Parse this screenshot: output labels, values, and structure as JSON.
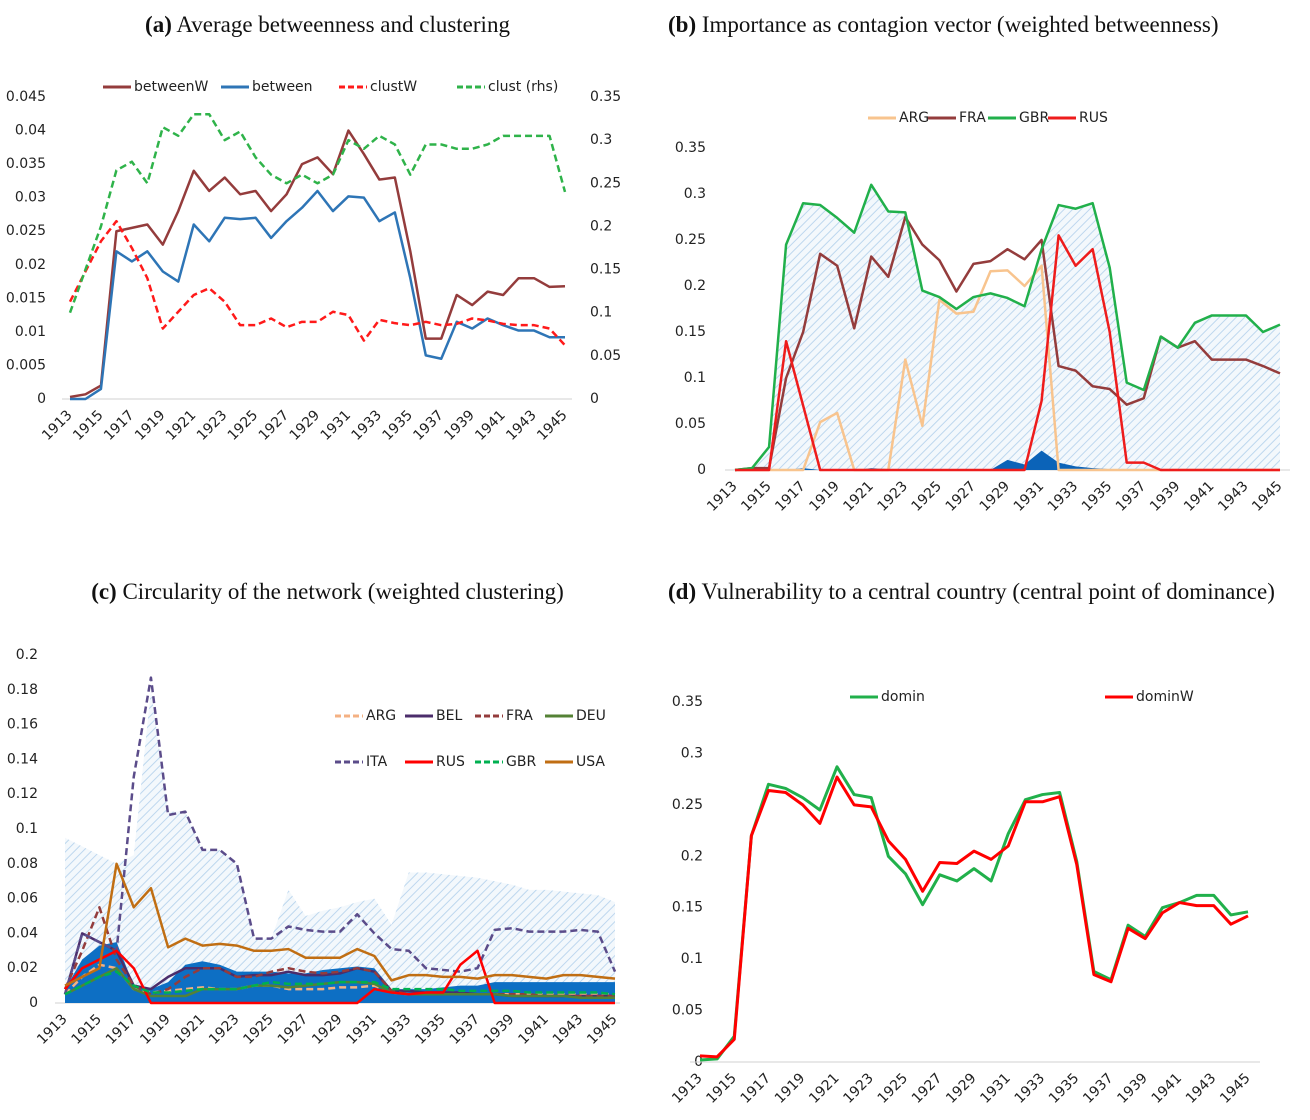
{
  "chart_data": [
    {
      "type": "line",
      "label": "(a)",
      "title": "Average betweenness and clustering",
      "categories": [
        "1913",
        null,
        "1915",
        null,
        "1917",
        null,
        "1919",
        null,
        "1921",
        null,
        "1923",
        null,
        "1925",
        null,
        "1927",
        null,
        "1929",
        null,
        "1931",
        null,
        "1933",
        null,
        "1935",
        null,
        "1937",
        null,
        "1939",
        null,
        "1941",
        null,
        "1943",
        null,
        "1945"
      ],
      "ylim": [
        0,
        0.045
      ],
      "yticks": [
        0,
        0.005,
        0.01,
        0.015,
        0.02,
        0.025,
        0.03,
        0.035,
        0.04,
        0.045
      ],
      "y2lim": [
        0,
        0.35
      ],
      "y2ticks": [
        0,
        0.05,
        0.1,
        0.15,
        0.2,
        0.25,
        0.3,
        0.35
      ],
      "legend": "top",
      "series": [
        {
          "name": "betweenW",
          "color": "#943c3c",
          "values": [
            0.0003,
            0.0007,
            0.002,
            0.025,
            0.0255,
            0.026,
            0.023,
            0.028,
            0.034,
            0.031,
            0.033,
            0.0305,
            0.031,
            0.028,
            0.0305,
            0.035,
            0.036,
            0.0335,
            0.04,
            0.0365,
            0.0327,
            0.033,
            0.022,
            0.009,
            0.009,
            0.0155,
            0.014,
            0.016,
            0.0155,
            0.018,
            0.018,
            0.0167,
            0.0168
          ]
        },
        {
          "name": "between",
          "color": "#2e75b6",
          "values": [
            0,
            0,
            0.0015,
            0.022,
            0.0205,
            0.022,
            0.019,
            0.0175,
            0.026,
            0.0235,
            0.027,
            0.0268,
            0.027,
            0.024,
            0.0265,
            0.0285,
            0.031,
            0.028,
            0.0302,
            0.03,
            0.0265,
            0.0278,
            0.018,
            0.0065,
            0.006,
            0.0115,
            0.0105,
            0.012,
            0.011,
            0.0102,
            0.0102,
            0.0092,
            0.0092
          ]
        },
        {
          "name": "clustW",
          "color": "#ff1a1a",
          "dash": true,
          "values": [
            0.0145,
            0.019,
            0.0235,
            0.0265,
            0.0225,
            0.018,
            0.0105,
            0.013,
            0.0155,
            0.0165,
            0.0145,
            0.011,
            0.011,
            0.012,
            0.0107,
            0.0115,
            0.0115,
            0.013,
            0.0125,
            0.0087,
            0.0118,
            0.0113,
            0.011,
            0.0115,
            0.011,
            0.0112,
            0.012,
            0.0117,
            0.0112,
            0.011,
            0.011,
            0.0105,
            0.008
          ]
        },
        {
          "name": "clust (rhs)",
          "color": "#2fb34a",
          "dash": true,
          "axis": "y2",
          "values": [
            0.1,
            0.15,
            0.2,
            0.265,
            0.275,
            0.25,
            0.315,
            0.305,
            0.33,
            0.33,
            0.3,
            0.31,
            0.28,
            0.26,
            0.25,
            0.26,
            0.25,
            0.26,
            0.3,
            0.29,
            0.305,
            0.295,
            0.26,
            0.295,
            0.295,
            0.29,
            0.29,
            0.295,
            0.305,
            0.305,
            0.305,
            0.305,
            0.24
          ]
        }
      ]
    },
    {
      "type": "line",
      "label": "(b)",
      "title": "Importance as contagion vector (weighted betweenness)",
      "categories": [
        "1913",
        null,
        "1915",
        null,
        "1917",
        null,
        "1919",
        null,
        "1921",
        null,
        "1923",
        null,
        "1925",
        null,
        "1927",
        null,
        "1929",
        null,
        "1931",
        null,
        "1933",
        null,
        "1935",
        null,
        "1937",
        null,
        "1939",
        null,
        "1941",
        null,
        "1943",
        null,
        "1945"
      ],
      "ylim": [
        0,
        0.35
      ],
      "yticks": [
        0,
        0.05,
        0.1,
        0.15,
        0.2,
        0.25,
        0.3,
        0.35
      ],
      "legend": "top",
      "series": [
        {
          "kind": "area",
          "pattern": "hatch",
          "color": "#bdd7ee",
          "values": [
            0,
            0.002,
            0.025,
            0.245,
            0.29,
            0.288,
            0.274,
            0.258,
            0.31,
            0.281,
            0.28,
            0.195,
            0.188,
            0.175,
            0.188,
            0.192,
            0.187,
            0.178,
            0.24,
            0.288,
            0.284,
            0.29,
            0.22,
            0.095,
            0.087,
            0.145,
            0.133,
            0.16,
            0.168,
            0.168,
            0.168,
            0.15,
            0.158
          ]
        },
        {
          "kind": "area",
          "color": "#0b63b8",
          "values": [
            0,
            0,
            0,
            0,
            0.002,
            0,
            0,
            0,
            0.002,
            0.001,
            0,
            0,
            0,
            0,
            0,
            0,
            0.011,
            0.006,
            0.021,
            0.008,
            0.004,
            0.002,
            0.001,
            0,
            0,
            0,
            0,
            0,
            0,
            0,
            0.001,
            0.001,
            0
          ]
        },
        {
          "name": "ARG",
          "color": "#f8c48e",
          "values": [
            0,
            0,
            0,
            0,
            0,
            0.052,
            0.062,
            0,
            0,
            0,
            0.12,
            0.048,
            0.185,
            0.17,
            0.172,
            0.216,
            0.217,
            0.2,
            0.222,
            0,
            0,
            0,
            0,
            0,
            0,
            0,
            0,
            0,
            0,
            0,
            0,
            0,
            0
          ]
        },
        {
          "name": "FRA",
          "color": "#943c3c",
          "values": [
            0,
            0.002,
            0.002,
            0.1,
            0.15,
            0.235,
            0.222,
            0.154,
            0.232,
            0.21,
            0.275,
            0.245,
            0.228,
            0.194,
            0.224,
            0.227,
            0.24,
            0.229,
            0.25,
            0.113,
            0.108,
            0.091,
            0.088,
            0.071,
            0.078,
            0.145,
            0.133,
            0.14,
            0.12,
            0.12,
            0.12,
            0.113,
            0.105
          ]
        },
        {
          "name": "GBR",
          "color": "#21b04b",
          "values": [
            0,
            0.002,
            0.025,
            0.245,
            0.29,
            0.288,
            0.274,
            0.258,
            0.31,
            0.281,
            0.28,
            0.195,
            0.188,
            0.175,
            0.188,
            0.192,
            0.187,
            0.178,
            0.24,
            0.288,
            0.284,
            0.29,
            0.22,
            0.095,
            0.087,
            0.145,
            0.133,
            0.16,
            0.168,
            0.168,
            0.168,
            0.15,
            0.158
          ]
        },
        {
          "name": "RUS",
          "color": "#ee1c1c",
          "values": [
            0,
            0,
            0,
            0.14,
            0.07,
            0,
            0,
            0,
            0,
            0,
            0,
            0,
            0,
            0,
            0,
            0,
            0,
            0,
            0.075,
            0.255,
            0.222,
            0.24,
            0.15,
            0.008,
            0.008,
            0,
            0,
            0,
            0,
            0,
            0,
            0,
            0
          ]
        }
      ]
    },
    {
      "type": "line",
      "label": "(c)",
      "title": "Circularity of the network (weighted clustering)",
      "categories": [
        "1913",
        null,
        "1915",
        null,
        "1917",
        null,
        "1919",
        null,
        "1921",
        null,
        "1923",
        null,
        "1925",
        null,
        "1927",
        null,
        "1929",
        null,
        "1931",
        null,
        "1933",
        null,
        "1935",
        null,
        "1937",
        null,
        "1939",
        null,
        "1941",
        null,
        "1943",
        null,
        "1945"
      ],
      "ylim": [
        0,
        0.2
      ],
      "yticks": [
        0,
        0.02,
        0.04,
        0.06,
        0.08,
        0.1,
        0.12,
        0.14,
        0.16,
        0.18,
        0.2
      ],
      "legend": "upper right",
      "series": [
        {
          "kind": "area",
          "pattern": "hatch",
          "color": "#bdd7ee",
          "values": [
            0.095,
            0.09,
            0.085,
            0.08,
            0.085,
            0.18,
            0.11,
            0.11,
            0.088,
            0.088,
            0.08,
            0.037,
            0.037,
            0.065,
            0.05,
            0.053,
            0.055,
            0.058,
            0.06,
            0.045,
            0.075,
            0.075,
            0.074,
            0.073,
            0.072,
            0.07,
            0.068,
            0.065,
            0.065,
            0.064,
            0.063,
            0.062,
            0.058
          ]
        },
        {
          "kind": "area",
          "color": "#0d6fc4",
          "values": [
            0.008,
            0.025,
            0.033,
            0.035,
            0.01,
            0.008,
            0.012,
            0.022,
            0.024,
            0.022,
            0.018,
            0.018,
            0.018,
            0.017,
            0.017,
            0.019,
            0.02,
            0.021,
            0.02,
            0.008,
            0.008,
            0.008,
            0.009,
            0.01,
            0.01,
            0.012,
            0.012,
            0.012,
            0.012,
            0.012,
            0.012,
            0.012,
            0.012
          ]
        },
        {
          "name": "ARG",
          "color": "#f4b183",
          "dash": true,
          "values": [
            0.005,
            0.015,
            0.022,
            0.02,
            0.008,
            0.006,
            0.007,
            0.008,
            0.009,
            0.008,
            0.008,
            0.01,
            0.01,
            0.008,
            0.008,
            0.008,
            0.009,
            0.009,
            0.01,
            0.006,
            0.005,
            0.005,
            0.005,
            0.005,
            0.005,
            0.005,
            0.005,
            0.005,
            0.005,
            0.005,
            0.005,
            0.005,
            0.005
          ]
        },
        {
          "name": "BEL",
          "color": "#4b2d6b",
          "values": [
            0.005,
            0.04,
            0.035,
            0.03,
            0.01,
            0.008,
            0.015,
            0.02,
            0.02,
            0.02,
            0.015,
            0.016,
            0.016,
            0.018,
            0.016,
            0.016,
            0.017,
            0.02,
            0.018,
            0.007,
            0.007,
            0.006,
            0.006,
            0.006,
            0.005,
            0.005,
            0.004,
            0.004,
            0.004,
            0.004,
            0.004,
            0.004,
            0.004
          ]
        },
        {
          "name": "FRA",
          "color": "#943c3c",
          "dash": true,
          "values": [
            0.008,
            0.03,
            0.055,
            0.025,
            0.01,
            0.005,
            0.008,
            0.015,
            0.02,
            0.02,
            0.015,
            0.015,
            0.018,
            0.02,
            0.018,
            0.017,
            0.018,
            0.02,
            0.018,
            0.007,
            0.005,
            0.005,
            0.005,
            0.005,
            0.005,
            0.005,
            0.005,
            0.005,
            0.004,
            0.004,
            0.004,
            0.004,
            0.004
          ]
        },
        {
          "name": "DEU",
          "color": "#548235",
          "values": [
            0.005,
            0.01,
            0.015,
            0.02,
            0.008,
            0.004,
            0.004,
            0.004,
            0.008,
            0.008,
            0.008,
            0.01,
            0.01,
            0.009,
            0.01,
            0.011,
            0.012,
            0.012,
            0.011,
            0.006,
            0.005,
            0.005,
            0.005,
            0.005,
            0.005,
            0.005,
            0.004,
            0.004,
            0.004,
            0.004,
            0.003,
            0.003,
            0.003
          ]
        },
        {
          "name": "ITA",
          "color": "#5b4c8a",
          "dash": true,
          "values": [
            0.005,
            0.04,
            0.035,
            0.03,
            0.13,
            0.187,
            0.108,
            0.11,
            0.088,
            0.088,
            0.08,
            0.037,
            0.037,
            0.044,
            0.042,
            0.041,
            0.041,
            0.051,
            0.04,
            0.031,
            0.03,
            0.02,
            0.019,
            0.018,
            0.02,
            0.042,
            0.043,
            0.041,
            0.041,
            0.041,
            0.042,
            0.041,
            0.018
          ]
        },
        {
          "name": "RUS",
          "color": "#ff0000",
          "values": [
            0.008,
            0.02,
            0.025,
            0.03,
            0.02,
            0,
            0,
            0,
            0,
            0,
            0,
            0,
            0,
            0,
            0,
            0,
            0,
            0,
            0.008,
            0.006,
            0.005,
            0.006,
            0.006,
            0.022,
            0.03,
            0,
            0,
            0,
            0,
            0,
            0,
            0,
            0
          ]
        },
        {
          "name": "GBR",
          "color": "#00b050",
          "dash": true,
          "values": [
            0.005,
            0.01,
            0.015,
            0.018,
            0.01,
            0.006,
            0.006,
            0.007,
            0.008,
            0.008,
            0.008,
            0.01,
            0.012,
            0.011,
            0.011,
            0.011,
            0.012,
            0.012,
            0.012,
            0.008,
            0.008,
            0.008,
            0.008,
            0.007,
            0.007,
            0.007,
            0.007,
            0.006,
            0.006,
            0.006,
            0.006,
            0.006,
            0.005
          ]
        },
        {
          "name": "USA",
          "color": "#c06e13",
          "values": [
            0.01,
            0.015,
            0.02,
            0.08,
            0.055,
            0.066,
            0.032,
            0.037,
            0.033,
            0.034,
            0.033,
            0.03,
            0.03,
            0.031,
            0.026,
            0.026,
            0.026,
            0.031,
            0.027,
            0.013,
            0.016,
            0.016,
            0.015,
            0.015,
            0.014,
            0.016,
            0.016,
            0.015,
            0.014,
            0.016,
            0.016,
            0.015,
            0.014
          ]
        }
      ]
    },
    {
      "type": "line",
      "label": "(d)",
      "title": "Vulnerability to a central country (central point of dominance)",
      "categories": [
        "1913",
        null,
        "1915",
        null,
        "1917",
        null,
        "1919",
        null,
        "1921",
        null,
        "1923",
        null,
        "1925",
        null,
        "1927",
        null,
        "1929",
        null,
        "1931",
        null,
        "1933",
        null,
        "1935",
        null,
        "1937",
        null,
        "1939",
        null,
        "1941",
        null,
        "1943",
        null,
        "1945"
      ],
      "ylim": [
        0,
        0.35
      ],
      "yticks": [
        0,
        0.05,
        0.1,
        0.15,
        0.2,
        0.25,
        0.3,
        0.35
      ],
      "legend": "top",
      "series": [
        {
          "name": "domin",
          "color": "#21b04b",
          "values": [
            0.002,
            0.003,
            0.025,
            0.22,
            0.27,
            0.266,
            0.257,
            0.245,
            0.287,
            0.26,
            0.257,
            0.2,
            0.183,
            0.153,
            0.182,
            0.176,
            0.188,
            0.176,
            0.222,
            0.255,
            0.26,
            0.262,
            0.195,
            0.088,
            0.08,
            0.133,
            0.122,
            0.15,
            0.155,
            0.162,
            0.162,
            0.143,
            0.146
          ]
        },
        {
          "name": "dominW",
          "color": "#ff0000",
          "values": [
            0.006,
            0.005,
            0.022,
            0.22,
            0.264,
            0.262,
            0.25,
            0.232,
            0.277,
            0.25,
            0.248,
            0.215,
            0.197,
            0.166,
            0.194,
            0.193,
            0.205,
            0.197,
            0.21,
            0.253,
            0.253,
            0.258,
            0.192,
            0.085,
            0.078,
            0.13,
            0.12,
            0.145,
            0.155,
            0.152,
            0.152,
            0.134,
            0.142
          ]
        }
      ]
    }
  ]
}
